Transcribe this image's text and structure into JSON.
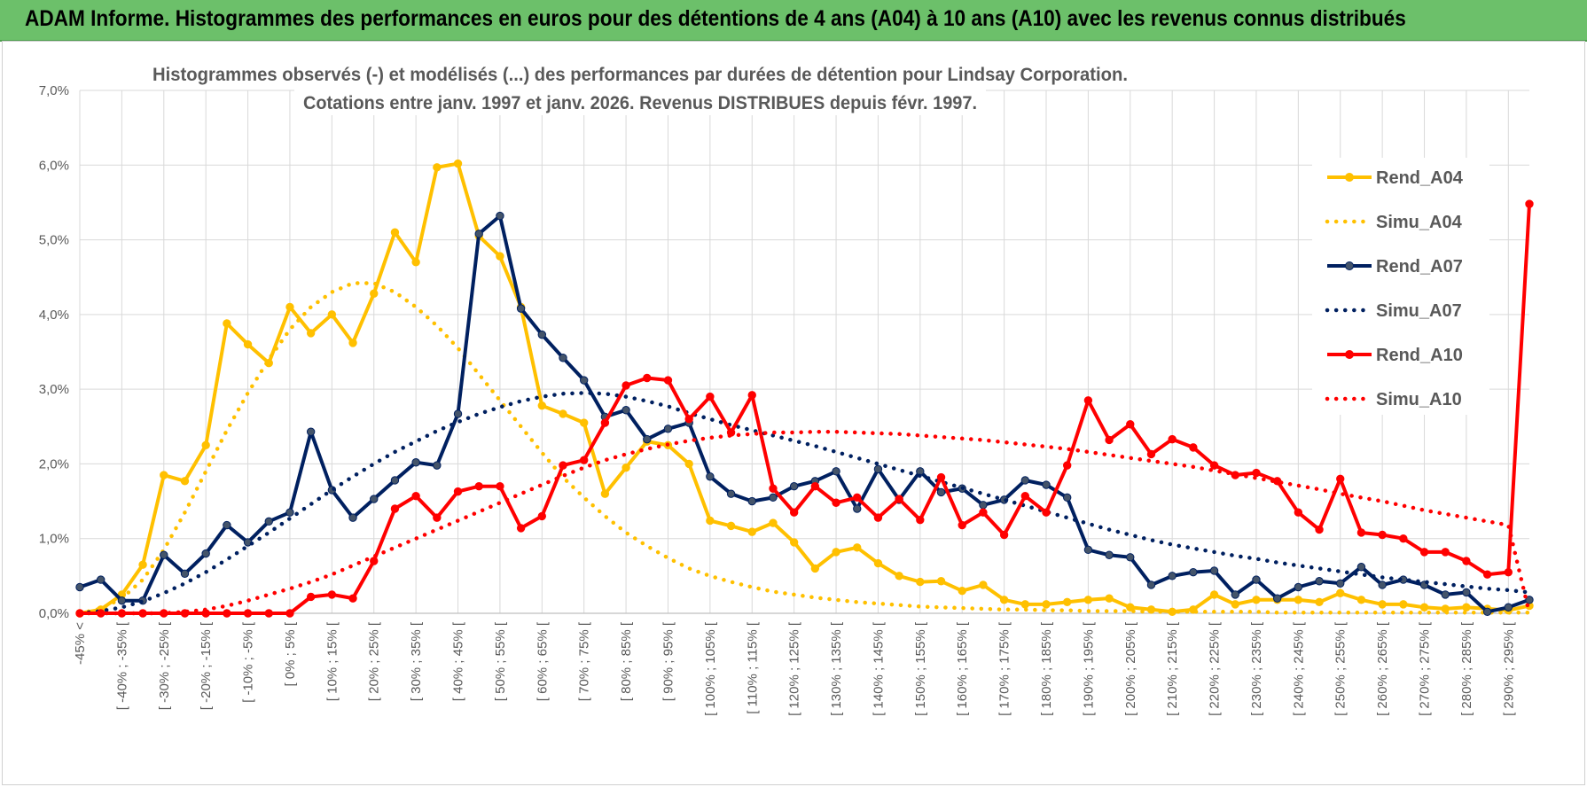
{
  "header": {
    "title": "ADAM Informe. Histogrammes des performances en euros pour des détentions de 4 ans (A04) à 10 ans (A10) avec les revenus connus distribués"
  },
  "colors": {
    "header_bg": "#6cc06a",
    "A04": "#ffc000",
    "A07": "#002060",
    "A10": "#ff0000",
    "grid": "#d9d9d9"
  },
  "chart_data": {
    "type": "line",
    "title": [
      "Histogrammes observés (-) et modélisés (...) des performances par durées de détention pour Lindsay Corporation.",
      "Cotations entre janv. 1997 et janv. 2026. Revenus DISTRIBUES depuis févr. 1997."
    ],
    "ylim": [
      0,
      7
    ],
    "yticks": [
      "0,0%",
      "1,0%",
      "2,0%",
      "3,0%",
      "4,0%",
      "5,0%",
      "6,0%",
      "7,0%"
    ],
    "x_count": 70,
    "xtick_labels": [
      "-45% <",
      "[ -40% ; -35% [",
      "[ -30% ; -25% [",
      "[ -20% ; -15% [",
      "[ -10% ; -5% [",
      "[ 0% ; 5% [",
      "[ 10% ; 15% [",
      "[ 20% ; 25% [",
      "[ 30% ; 35% [",
      "[ 40% ; 45% [",
      "[ 50% ; 55% [",
      "[ 60% ; 65% [",
      "[ 70% ; 75% [",
      "[ 80% ; 85% [",
      "[ 90% ; 95% [",
      "[ 100% ; 105% [",
      "[ 110% ; 115% [",
      "[ 120% ; 125% [",
      "[ 130% ; 135% [",
      "[ 140% ; 145% [",
      "[ 150% ; 155% [",
      "[ 160% ; 165% [",
      "[ 170% ; 175% [",
      "[ 180% ; 185% [",
      "[ 190% ; 195% [",
      "[ 200% ; 205% [",
      "[ 210% ; 215% [",
      "[ 220% ; 225% [",
      "[ 230% ; 235% [",
      "[ 240% ; 245% [",
      "[ 250% ; 255% [",
      "[ 260% ; 265% [",
      "[ 270% ; 275% [",
      "[ 280% ; 285% [",
      "[ 290% ; 295% ["
    ],
    "legend_position": "right",
    "grid": true,
    "series": [
      {
        "name": "Rend_A04",
        "color": "#ffc000",
        "style": "solid",
        "values": [
          0.0,
          0.05,
          0.25,
          0.65,
          1.85,
          1.77,
          2.25,
          3.88,
          3.6,
          3.35,
          4.1,
          3.75,
          4.0,
          3.62,
          4.28,
          5.1,
          4.7,
          5.97,
          6.02,
          5.05,
          4.78,
          4.1,
          2.78,
          2.67,
          2.55,
          1.6,
          1.95,
          2.3,
          2.25,
          2.0,
          1.24,
          1.17,
          1.09,
          1.21,
          0.95,
          0.6,
          0.82,
          0.88,
          0.67,
          0.5,
          0.42,
          0.43,
          0.3,
          0.38,
          0.18,
          0.12,
          0.12,
          0.15,
          0.18,
          0.2,
          0.08,
          0.05,
          0.02,
          0.05,
          0.25,
          0.12,
          0.18,
          0.18,
          0.18,
          0.15,
          0.27,
          0.18,
          0.12,
          0.12,
          0.08,
          0.06,
          0.08,
          0.06,
          0.04,
          0.1
        ]
      },
      {
        "name": "Simu_A04",
        "color": "#ffc000",
        "style": "dotted",
        "values": [
          0.0,
          0.06,
          0.2,
          0.45,
          0.85,
          1.35,
          1.9,
          2.45,
          2.95,
          3.4,
          3.8,
          4.1,
          4.3,
          4.42,
          4.42,
          4.3,
          4.1,
          3.85,
          3.55,
          3.2,
          2.85,
          2.5,
          2.15,
          1.82,
          1.55,
          1.3,
          1.08,
          0.9,
          0.74,
          0.6,
          0.5,
          0.42,
          0.35,
          0.29,
          0.25,
          0.21,
          0.18,
          0.15,
          0.13,
          0.11,
          0.09,
          0.08,
          0.07,
          0.06,
          0.05,
          0.05,
          0.04,
          0.04,
          0.03,
          0.03,
          0.03,
          0.02,
          0.02,
          0.02,
          0.02,
          0.02,
          0.02,
          0.01,
          0.01,
          0.01,
          0.01,
          0.01,
          0.01,
          0.01,
          0.01,
          0.01,
          0.01,
          0.01,
          0.01,
          0.01
        ]
      },
      {
        "name": "Rend_A07",
        "color": "#002060",
        "style": "solid",
        "values": [
          0.35,
          0.45,
          0.17,
          0.17,
          0.78,
          0.53,
          0.8,
          1.18,
          0.95,
          1.23,
          1.35,
          2.43,
          1.65,
          1.28,
          1.53,
          1.78,
          2.02,
          1.98,
          2.67,
          5.08,
          5.32,
          4.08,
          3.73,
          3.42,
          3.12,
          2.63,
          2.72,
          2.33,
          2.47,
          2.55,
          1.83,
          1.6,
          1.5,
          1.55,
          1.7,
          1.77,
          1.9,
          1.4,
          1.93,
          1.52,
          1.9,
          1.62,
          1.67,
          1.45,
          1.52,
          1.78,
          1.72,
          1.55,
          0.85,
          0.78,
          0.75,
          0.38,
          0.5,
          0.55,
          0.57,
          0.25,
          0.45,
          0.2,
          0.35,
          0.43,
          0.4,
          0.62,
          0.38,
          0.45,
          0.38,
          0.25,
          0.28,
          0.02,
          0.08,
          0.18
        ]
      },
      {
        "name": "Simu_A07",
        "color": "#002060",
        "style": "dotted",
        "values": [
          0.0,
          0.03,
          0.08,
          0.16,
          0.27,
          0.4,
          0.55,
          0.72,
          0.9,
          1.08,
          1.27,
          1.46,
          1.65,
          1.83,
          2.0,
          2.16,
          2.3,
          2.44,
          2.56,
          2.67,
          2.76,
          2.84,
          2.9,
          2.94,
          2.95,
          2.94,
          2.9,
          2.84,
          2.77,
          2.68,
          2.6,
          2.52,
          2.45,
          2.38,
          2.31,
          2.24,
          2.16,
          2.08,
          2.0,
          1.92,
          1.84,
          1.76,
          1.68,
          1.6,
          1.52,
          1.44,
          1.36,
          1.28,
          1.2,
          1.12,
          1.05,
          0.98,
          0.92,
          0.87,
          0.82,
          0.77,
          0.73,
          0.68,
          0.64,
          0.6,
          0.56,
          0.52,
          0.48,
          0.45,
          0.42,
          0.39,
          0.36,
          0.33,
          0.31,
          0.28
        ]
      },
      {
        "name": "Rend_A10",
        "color": "#ff0000",
        "style": "solid",
        "values": [
          0.0,
          0.0,
          0.0,
          0.0,
          0.0,
          0.0,
          0.0,
          0.0,
          0.0,
          0.0,
          0.0,
          0.22,
          0.25,
          0.2,
          0.7,
          1.4,
          1.57,
          1.28,
          1.63,
          1.7,
          1.7,
          1.14,
          1.3,
          1.98,
          2.05,
          2.55,
          3.05,
          3.15,
          3.12,
          2.6,
          2.9,
          2.42,
          2.92,
          1.67,
          1.35,
          1.7,
          1.48,
          1.55,
          1.28,
          1.53,
          1.25,
          1.82,
          1.18,
          1.35,
          1.05,
          1.57,
          1.35,
          1.98,
          2.85,
          2.32,
          2.53,
          2.13,
          2.33,
          2.22,
          1.98,
          1.85,
          1.88,
          1.77,
          1.35,
          1.12,
          1.8,
          1.08,
          1.05,
          1.0,
          0.82,
          0.82,
          0.7,
          0.52,
          0.55,
          5.48
        ]
      },
      {
        "name": "Simu_A10",
        "color": "#ff0000",
        "style": "dotted",
        "values": [
          0.0,
          0.0,
          0.0,
          0.0,
          0.0,
          0.02,
          0.05,
          0.1,
          0.17,
          0.25,
          0.33,
          0.42,
          0.52,
          0.64,
          0.76,
          0.88,
          1.0,
          1.12,
          1.24,
          1.36,
          1.48,
          1.6,
          1.72,
          1.84,
          1.95,
          2.05,
          2.13,
          2.2,
          2.26,
          2.31,
          2.35,
          2.38,
          2.4,
          2.42,
          2.42,
          2.43,
          2.43,
          2.42,
          2.41,
          2.4,
          2.38,
          2.36,
          2.34,
          2.32,
          2.29,
          2.26,
          2.23,
          2.2,
          2.16,
          2.12,
          2.08,
          2.04,
          2.0,
          1.96,
          1.91,
          1.86,
          1.81,
          1.76,
          1.71,
          1.66,
          1.6,
          1.55,
          1.5,
          1.44,
          1.38,
          1.33,
          1.28,
          1.23,
          1.18,
          0.0
        ]
      }
    ]
  }
}
